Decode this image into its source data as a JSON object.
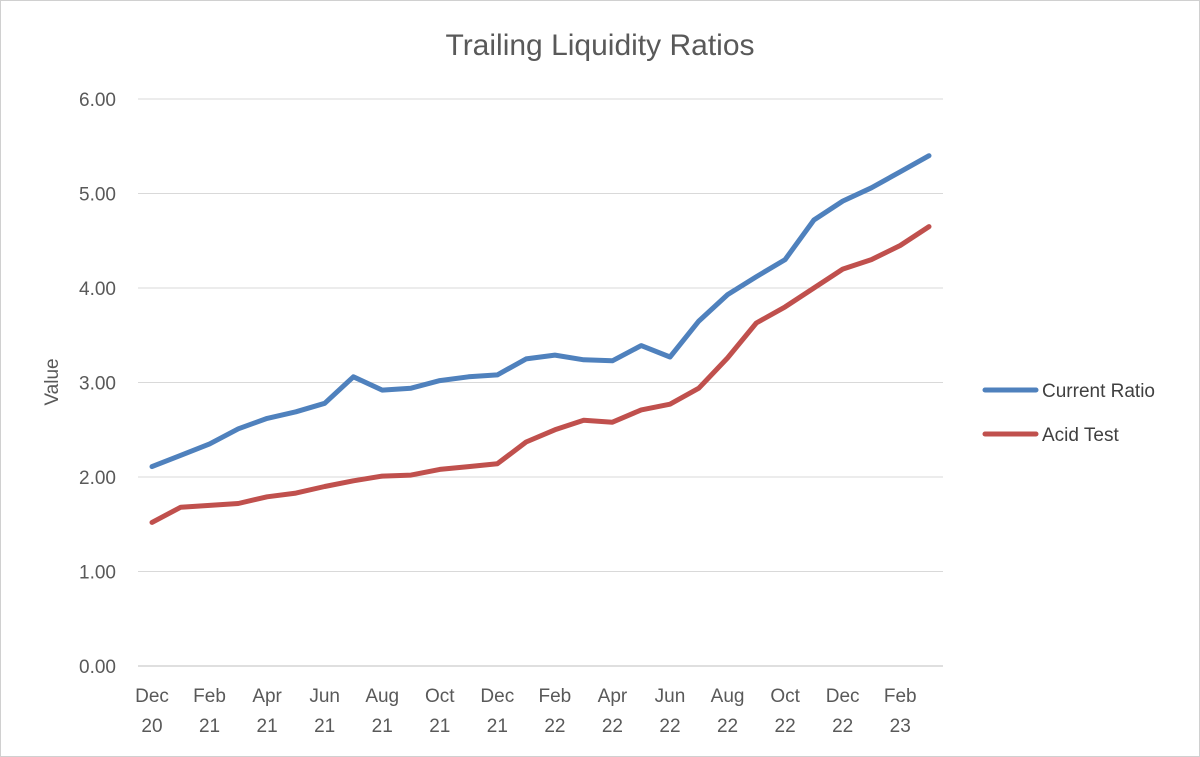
{
  "chart_data": {
    "type": "line",
    "title": "Trailing Liquidity Ratios",
    "xlabel": "",
    "ylabel": "Value",
    "ylim": [
      0,
      6
    ],
    "y_ticks": [
      "0.00",
      "1.00",
      "2.00",
      "3.00",
      "4.00",
      "5.00",
      "6.00"
    ],
    "grid": true,
    "legend_position": "right",
    "x": [
      "Dec 20",
      "Jan 21",
      "Feb 21",
      "Mar 21",
      "Apr 21",
      "May 21",
      "Jun 21",
      "Jul 21",
      "Aug 21",
      "Sep 21",
      "Oct 21",
      "Nov 21",
      "Dec 21",
      "Jan 22",
      "Feb 22",
      "Mar 22",
      "Apr 22",
      "May 22",
      "Jun 22",
      "Jul 22",
      "Aug 22",
      "Sep 22",
      "Oct 22",
      "Nov 22",
      "Dec 22",
      "Jan 23",
      "Feb 23",
      "Mar 23"
    ],
    "x_tick_labels": [
      {
        "index": 0,
        "line1": "Dec",
        "line2": "20"
      },
      {
        "index": 2,
        "line1": "Feb",
        "line2": "21"
      },
      {
        "index": 4,
        "line1": "Apr",
        "line2": "21"
      },
      {
        "index": 6,
        "line1": "Jun",
        "line2": "21"
      },
      {
        "index": 8,
        "line1": "Aug",
        "line2": "21"
      },
      {
        "index": 10,
        "line1": "Oct",
        "line2": "21"
      },
      {
        "index": 12,
        "line1": "Dec",
        "line2": "21"
      },
      {
        "index": 14,
        "line1": "Feb",
        "line2": "22"
      },
      {
        "index": 16,
        "line1": "Apr",
        "line2": "22"
      },
      {
        "index": 18,
        "line1": "Jun",
        "line2": "22"
      },
      {
        "index": 20,
        "line1": "Aug",
        "line2": "22"
      },
      {
        "index": 22,
        "line1": "Oct",
        "line2": "22"
      },
      {
        "index": 24,
        "line1": "Dec",
        "line2": "22"
      },
      {
        "index": 26,
        "line1": "Feb",
        "line2": "23"
      }
    ],
    "series": [
      {
        "name": "Current Ratio",
        "color": "#4f81bd",
        "values": [
          2.11,
          2.23,
          2.35,
          2.51,
          2.62,
          2.69,
          2.78,
          3.06,
          2.92,
          2.94,
          3.02,
          3.06,
          3.08,
          3.25,
          3.29,
          3.24,
          3.23,
          3.39,
          3.27,
          3.65,
          3.93,
          4.12,
          4.3,
          4.72,
          4.92,
          5.06,
          5.23,
          5.4
        ]
      },
      {
        "name": "Acid Test",
        "color": "#c0504d",
        "values": [
          1.52,
          1.68,
          1.7,
          1.72,
          1.79,
          1.83,
          1.9,
          1.96,
          2.01,
          2.02,
          2.08,
          2.11,
          2.14,
          2.37,
          2.5,
          2.6,
          2.58,
          2.71,
          2.77,
          2.94,
          3.26,
          3.63,
          3.8,
          4.0,
          4.2,
          4.3,
          4.45,
          4.65
        ]
      }
    ]
  }
}
